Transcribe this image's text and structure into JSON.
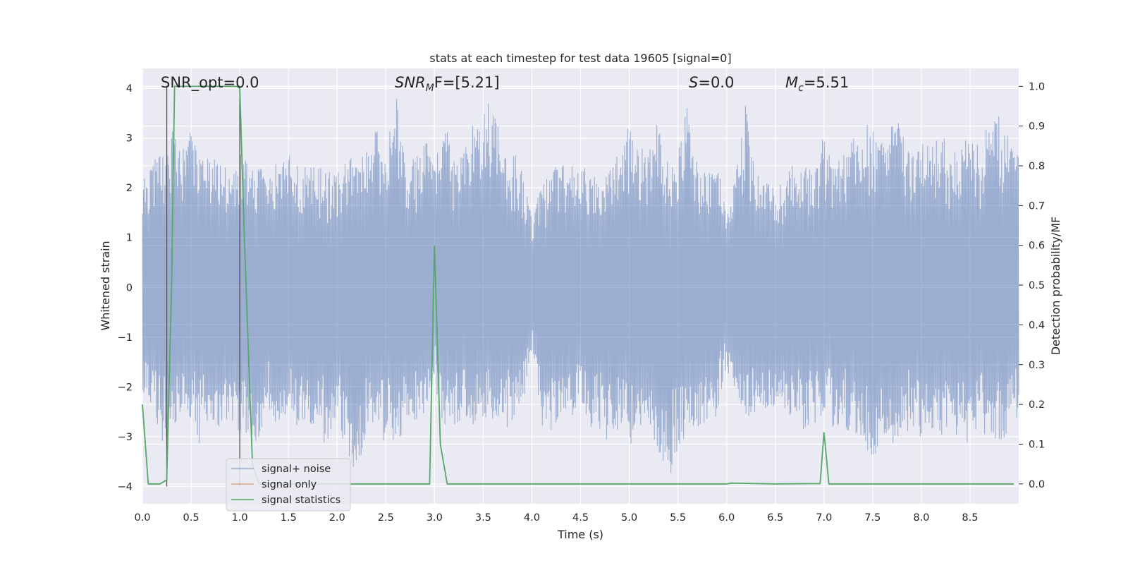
{
  "chart_data": {
    "type": "line",
    "title": "stats at each timestep for test data 19605 [signal=0]",
    "xlabel": "Time (s)",
    "ylabel": "Whitened strain",
    "ylabel_right": "Detection probability/MF",
    "xlim": [
      0.0,
      9.0
    ],
    "ylim": [
      -4.35,
      4.4
    ],
    "ylim_right": [
      -0.05,
      1.045
    ],
    "xticks": [
      "0.0",
      "0.5",
      "1.0",
      "1.5",
      "2.0",
      "2.5",
      "3.0",
      "3.5",
      "4.0",
      "4.5",
      "5.0",
      "5.5",
      "6.0",
      "6.5",
      "7.0",
      "7.5",
      "8.0",
      "8.5"
    ],
    "yticks": [
      "4",
      "3",
      "2",
      "1",
      "0",
      "−1",
      "−2",
      "−3",
      "−4"
    ],
    "yticks_right": [
      "1.0",
      "0.9",
      "0.8",
      "0.7",
      "0.6",
      "0.5",
      "0.4",
      "0.3",
      "0.2",
      "0.1",
      "0.0"
    ],
    "grid": true,
    "legend_position": "lower-left",
    "annotations": {
      "snr_opt": "SNR_opt=0.0",
      "snr_mf_main": "SNR",
      "snr_mf_sub": "M",
      "snr_mf_rest": "F=[5.21]",
      "s_main": "S",
      "s_rest": "=0.0",
      "mc_main": "M",
      "mc_sub": "c",
      "mc_rest": "=5.51"
    },
    "series": [
      {
        "name": "signal+ noise",
        "color": "#4c72b0",
        "description_envelope": {
          "x": [
            0.0,
            0.1,
            0.2,
            0.3,
            0.4,
            0.5,
            0.6,
            0.7,
            0.8,
            0.9,
            1.0,
            1.1,
            1.2,
            1.3,
            1.4,
            1.5,
            1.6,
            1.7,
            1.8,
            1.9,
            2.0,
            2.1,
            2.2,
            2.3,
            2.4,
            2.5,
            2.6,
            2.7,
            2.8,
            2.9,
            3.0,
            3.1,
            3.2,
            3.3,
            3.4,
            3.5,
            3.6,
            3.7,
            3.8,
            3.9,
            4.0,
            4.1,
            4.2,
            4.3,
            4.4,
            4.5,
            4.6,
            4.7,
            4.8,
            4.9,
            5.0,
            5.1,
            5.2,
            5.3,
            5.4,
            5.5,
            5.6,
            5.7,
            5.8,
            5.9,
            6.0,
            6.1,
            6.2,
            6.3,
            6.4,
            6.5,
            6.6,
            6.7,
            6.8,
            6.9,
            7.0,
            7.1,
            7.2,
            7.3,
            7.4,
            7.5,
            7.6,
            7.7,
            7.8,
            7.9,
            8.0,
            8.1,
            8.2,
            8.3,
            8.4,
            8.5,
            8.6,
            8.7,
            8.8,
            8.9,
            9.0
          ],
          "upper": [
            2.2,
            2.5,
            2.8,
            3.3,
            2.7,
            3.2,
            2.6,
            2.7,
            2.5,
            2.4,
            2.7,
            2.5,
            2.4,
            2.5,
            2.5,
            2.7,
            2.6,
            2.4,
            2.5,
            2.3,
            2.5,
            2.7,
            2.5,
            2.9,
            3.2,
            2.6,
            4.0,
            2.5,
            2.6,
            3.1,
            2.4,
            3.4,
            2.6,
            2.7,
            3.3,
            3.5,
            4.0,
            2.6,
            2.8,
            2.5,
            1.5,
            2.0,
            2.4,
            2.5,
            2.6,
            2.5,
            2.4,
            2.5,
            2.6,
            2.7,
            3.3,
            2.9,
            2.8,
            3.4,
            2.6,
            2.7,
            3.7,
            2.5,
            2.4,
            2.6,
            1.4,
            2.4,
            3.8,
            2.2,
            2.5,
            1.9,
            2.2,
            2.6,
            2.4,
            2.6,
            3.1,
            2.5,
            2.7,
            3.0,
            3.2,
            3.4,
            2.9,
            3.9,
            3.1,
            2.6,
            3.0,
            2.8,
            3.2,
            2.6,
            2.9,
            3.1,
            2.8,
            3.4,
            3.5,
            3.0,
            2.7
          ],
          "lower": [
            -2.2,
            -2.4,
            -3.2,
            -3.1,
            -2.5,
            -2.8,
            -3.2,
            -2.7,
            -3.0,
            -2.6,
            -3.1,
            -3.3,
            -3.1,
            -2.6,
            -2.8,
            -2.7,
            -2.9,
            -2.8,
            -2.9,
            -3.3,
            -2.7,
            -3.4,
            -4.0,
            -2.8,
            -2.7,
            -3.2,
            -3.3,
            -2.9,
            -2.8,
            -2.6,
            -1.9,
            -3.0,
            -2.9,
            -2.7,
            -2.8,
            -2.6,
            -2.8,
            -3.0,
            -2.7,
            -2.6,
            -1.4,
            -2.8,
            -2.9,
            -2.7,
            -2.6,
            -2.5,
            -2.8,
            -3.0,
            -3.1,
            -2.8,
            -3.3,
            -2.9,
            -2.7,
            -3.4,
            -3.9,
            -3.3,
            -2.9,
            -2.8,
            -2.7,
            -2.7,
            -1.6,
            -2.6,
            -2.6,
            -2.8,
            -2.5,
            -2.6,
            -2.7,
            -2.8,
            -2.9,
            -2.8,
            -2.5,
            -2.9,
            -2.8,
            -3.1,
            -3.3,
            -3.9,
            -3.0,
            -3.2,
            -2.9,
            -3.0,
            -3.1,
            -2.9,
            -3.0,
            -2.8,
            -3.2,
            -3.1,
            -2.9,
            -3.0,
            -3.1,
            -3.0,
            -2.8
          ]
        }
      },
      {
        "name": "signal only",
        "color": "#dd8452",
        "x": [
          0.0,
          9.0
        ],
        "y": [
          0.0,
          0.0
        ]
      },
      {
        "name": "signal statistics",
        "color": "#55a868",
        "axis": "right",
        "x": [
          0.0,
          0.06,
          0.18,
          0.25,
          0.3,
          0.33,
          0.97,
          1.0,
          1.05,
          1.13,
          1.2,
          1.5,
          2.0,
          2.5,
          2.95,
          3.0,
          3.06,
          3.13,
          3.5,
          4.0,
          5.0,
          6.0,
          6.05,
          6.5,
          6.96,
          7.0,
          7.05,
          7.5,
          8.0,
          8.5,
          8.95
        ],
        "y": [
          0.2,
          0.0,
          0.0,
          0.01,
          0.5,
          1.0,
          1.0,
          0.995,
          0.6,
          0.05,
          0.0,
          0.0,
          0.0,
          0.0,
          0.0,
          0.6,
          0.1,
          0.0,
          0.0,
          0.0,
          0.0,
          0.0,
          0.002,
          0.0,
          0.001,
          0.13,
          0.0,
          0.0,
          0.0,
          0.0,
          0.0
        ]
      }
    ],
    "vertical_lines": [
      0.25,
      1.0
    ],
    "vertical_line_color": "#505050"
  }
}
